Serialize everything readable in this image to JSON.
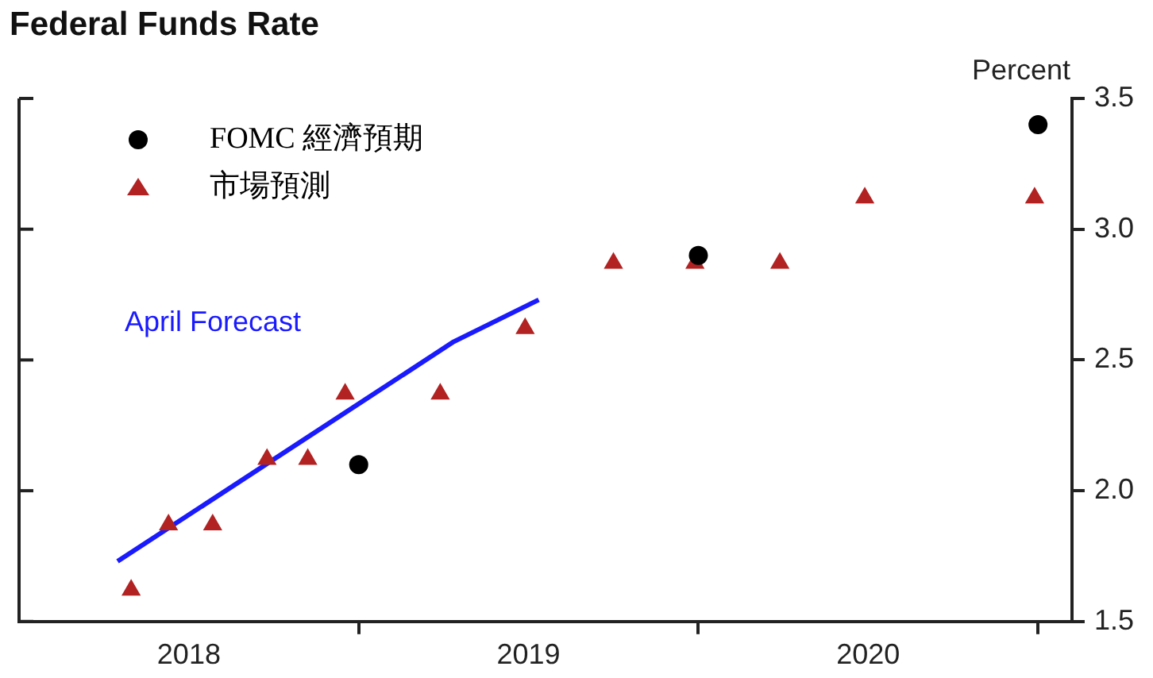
{
  "chart_data": {
    "type": "scatter",
    "title": "Federal Funds Rate",
    "ylabel": "Percent",
    "xlim": [
      2018,
      2021.1
    ],
    "xticks": [
      {
        "value": 2018.5,
        "label": "2018"
      },
      {
        "value": 2019,
        "label": null
      },
      {
        "value": 2019.5,
        "label": "2019"
      },
      {
        "value": 2020,
        "label": null
      },
      {
        "value": 2020.5,
        "label": "2020"
      },
      {
        "value": 2021,
        "label": null
      }
    ],
    "ylim": [
      1.5,
      3.5
    ],
    "yticks": [
      1.5,
      {
        "value": 2,
        "label": "2.0"
      },
      2.5,
      {
        "value": 3,
        "label": "3.0"
      },
      3.5
    ],
    "grid": false,
    "legend": "top left",
    "series": [
      {
        "name": "FOMC 經濟預期",
        "marker": "circle",
        "color": "#000000",
        "x": [
          2019.0,
          2020.0,
          2021.0
        ],
        "values": [
          2.1,
          2.9,
          3.4
        ]
      },
      {
        "name": "市場預測",
        "marker": "triangle",
        "color": "#b22222",
        "x": [
          2018.33,
          2018.44,
          2018.57,
          2018.73,
          2018.85,
          2018.96,
          2019.24,
          2019.49,
          2019.75,
          2019.99,
          2020.24,
          2020.49,
          2020.99
        ],
        "values": [
          1.62,
          1.87,
          1.87,
          2.12,
          2.12,
          2.37,
          2.37,
          2.62,
          2.87,
          2.87,
          2.87,
          3.12,
          3.12
        ]
      },
      {
        "name": "April Forecast",
        "type": "line",
        "marker": "none",
        "line_style": "solid",
        "color": "#1a1aff",
        "x": [
          2018.29,
          2019.28,
          2019.53
        ],
        "values": [
          1.73,
          2.57,
          2.73
        ]
      }
    ]
  }
}
